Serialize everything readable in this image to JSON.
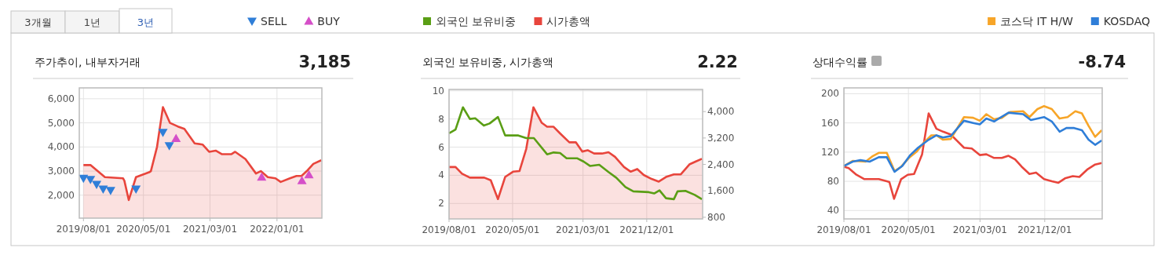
{
  "chart_data": [
    {
      "type": "area",
      "title": "주가추이, 내부자거래",
      "annotations": [
        "3,185",
        "3개월",
        "1년",
        "3년"
      ],
      "legend": "top",
      "grid": true,
      "xlim": [
        "2019-07-13",
        "2022-07-25"
      ],
      "xticks": [
        {
          "value": "2019-08-01",
          "label": "2019/08/01"
        },
        {
          "value": "2020-05-01",
          "label": "2020/05/01"
        },
        {
          "value": "2021-03-01",
          "label": "2021/03/01"
        },
        {
          "value": "2022-01-01",
          "label": "2022/01/01"
        }
      ],
      "ylim": [
        1050,
        6450
      ],
      "yticks": [
        {
          "value": 2000,
          "label": "2,000"
        },
        {
          "value": 3000,
          "label": "3,000"
        },
        {
          "value": 4000,
          "label": "4,000"
        },
        {
          "value": 5000,
          "label": "5,000"
        },
        {
          "value": 6000,
          "label": "6,000"
        }
      ],
      "series": [
        {
          "color": "#e8453c",
          "x": [
            "2019-08-01",
            "2019-09-02",
            "2019-11-07",
            "2020-01-29",
            "2020-02-04",
            "2020-02-24",
            "2020-03-28",
            "2020-05-27",
            "2020-06-04",
            "2020-07-02",
            "2020-07-29",
            "2020-08-30",
            "2020-10-05",
            "2020-11-04",
            "2020-12-21",
            "2021-01-26",
            "2021-02-25",
            "2021-03-27",
            "2021-04-25",
            "2021-06-06",
            "2021-06-24",
            "2021-08-10",
            "2021-09-27",
            "2021-10-19",
            "2021-11-20",
            "2021-12-25",
            "2022-01-18",
            "2022-03-01",
            "2022-03-31",
            "2022-04-23",
            "2022-05-17",
            "2022-06-16",
            "2022-07-22"
          ],
          "values": [
            3250,
            3250,
            2750,
            2700,
            2600,
            1800,
            2750,
            2950,
            3000,
            4000,
            5650,
            5000,
            4850,
            4750,
            4150,
            4100,
            3800,
            3850,
            3700,
            3700,
            3800,
            3500,
            2900,
            3000,
            2750,
            2700,
            2550,
            2700,
            2800,
            2800,
            3000,
            3300,
            3450
          ]
        },
        {
          "name": "SELL",
          "type": "scatter",
          "marker": "triangle-down",
          "color": "#2f7ed8",
          "x": [
            "2019-08-01",
            "2019-09-02",
            "2019-09-30",
            "2019-10-30",
            "2019-12-03",
            "2020-03-28",
            "2020-07-29",
            "2020-08-27"
          ],
          "values": [
            2700,
            2650,
            2450,
            2250,
            2200,
            2250,
            4600,
            4050
          ]
        },
        {
          "name": "BUY",
          "type": "scatter",
          "marker": "triangle",
          "color": "#d54fc8",
          "x": [
            "2020-09-27",
            "2021-10-23",
            "2022-04-25",
            "2022-05-27"
          ],
          "values": [
            4350,
            2750,
            2600,
            2850
          ]
        }
      ]
    },
    {
      "type": "line",
      "title": "외국인 보유비중, 시가총액",
      "annotations": [
        "2.22"
      ],
      "legend": "top",
      "grid": true,
      "xlim": [
        "2019-08-01",
        "2022-07-30"
      ],
      "xticks": [
        {
          "value": "2019-08-01",
          "label": "2019/08/01"
        },
        {
          "value": "2020-05-01",
          "label": "2020/05/01"
        },
        {
          "value": "2021-03-01",
          "label": "2021/03/01"
        },
        {
          "value": "2021-12-01",
          "label": "2021/12/01"
        }
      ],
      "ylim": [
        0.9,
        10.1
      ],
      "yticks": [
        2,
        4,
        6,
        8,
        10
      ],
      "y2lim": [
        750,
        4670
      ],
      "y2ticks": [
        800,
        {
          "value": 1600,
          "label": "1,600"
        },
        {
          "value": 2400,
          "label": "2,400"
        },
        {
          "value": 3200,
          "label": "3,200"
        },
        {
          "value": 4000,
          "label": "4,000"
        }
      ],
      "series": [
        {
          "name": "외국인 보유비중",
          "color": "#5a9e15",
          "x": [
            "2019-08-01",
            "2019-08-29",
            "2019-09-30",
            "2019-10-30",
            "2019-11-22",
            "2019-12-29",
            "2020-01-23",
            "2020-02-28",
            "2020-03-30",
            "2020-05-26",
            "2020-06-29",
            "2020-08-01",
            "2020-09-27",
            "2020-10-25",
            "2020-11-22",
            "2020-12-20",
            "2021-02-03",
            "2021-03-04",
            "2021-04-01",
            "2021-05-10",
            "2021-06-19",
            "2021-07-23",
            "2021-08-31",
            "2021-10-04",
            "2021-12-10",
            "2022-01-02",
            "2022-01-25",
            "2022-02-22",
            "2022-03-28",
            "2022-04-13",
            "2022-05-17",
            "2022-06-26",
            "2022-07-27"
          ],
          "values": [
            6.98,
            7.25,
            8.83,
            8.0,
            8.05,
            7.53,
            7.68,
            8.14,
            6.83,
            6.83,
            6.64,
            6.64,
            5.49,
            5.62,
            5.58,
            5.21,
            5.21,
            4.97,
            4.66,
            4.75,
            4.23,
            3.82,
            3.17,
            2.86,
            2.8,
            2.71,
            2.93,
            2.37,
            2.3,
            2.86,
            2.89,
            2.61,
            2.3
          ]
        },
        {
          "name": "시가총액",
          "type": "area",
          "axis": "y2",
          "color": "#e8453c",
          "x": [
            "2019-08-01",
            "2019-08-29",
            "2019-09-26",
            "2019-10-30",
            "2019-12-31",
            "2020-01-28",
            "2020-02-28",
            "2020-03-30",
            "2020-05-03",
            "2020-05-31",
            "2020-06-29",
            "2020-07-30",
            "2020-09-04",
            "2020-09-27",
            "2020-10-25",
            "2020-11-22",
            "2021-01-01",
            "2021-01-29",
            "2021-02-26",
            "2021-03-21",
            "2021-04-18",
            "2021-05-22",
            "2021-06-19",
            "2021-07-17",
            "2021-08-25",
            "2021-09-23",
            "2021-10-21",
            "2021-11-18",
            "2021-12-22",
            "2022-01-22",
            "2022-02-22",
            "2022-03-28",
            "2022-04-27",
            "2022-06-03",
            "2022-07-01",
            "2022-07-27"
          ],
          "values": [
            2320,
            2320,
            2120,
            2000,
            2000,
            1920,
            1350,
            2020,
            2180,
            2200,
            2870,
            4130,
            3660,
            3540,
            3540,
            3340,
            3070,
            3070,
            2790,
            2830,
            2730,
            2730,
            2770,
            2630,
            2320,
            2180,
            2260,
            2080,
            1960,
            1880,
            2020,
            2100,
            2100,
            2400,
            2490,
            2570
          ]
        }
      ]
    },
    {
      "type": "line",
      "title": "상대수익률",
      "annotations": [
        "-8.74"
      ],
      "legend": "top",
      "grid": true,
      "xlim": [
        "2019-08-01",
        "2022-08-02"
      ],
      "xticks": [
        {
          "value": "2019-08-01",
          "label": "2019/08/01"
        },
        {
          "value": "2020-05-01",
          "label": "2020/05/01"
        },
        {
          "value": "2021-03-01",
          "label": "2021/03/01"
        },
        {
          "value": "2021-12-01",
          "label": "2021/12/01"
        }
      ],
      "ylim": [
        28.5,
        208
      ],
      "yticks": [
        40,
        80,
        120,
        160,
        200
      ],
      "series": [
        {
          "color": "#e8453c",
          "x": [
            "2019-08-01",
            "2019-08-21",
            "2019-09-23",
            "2019-10-27",
            "2019-12-27",
            "2020-01-30",
            "2020-02-10",
            "2020-03-01",
            "2020-03-31",
            "2020-04-28",
            "2020-05-25",
            "2020-06-28",
            "2020-07-26",
            "2020-08-28",
            "2020-09-25",
            "2020-10-28",
            "2020-11-25",
            "2020-12-23",
            "2021-01-25",
            "2021-02-28",
            "2021-03-28",
            "2021-04-30",
            "2021-06-02",
            "2021-06-30",
            "2021-07-28",
            "2021-08-25",
            "2021-09-27",
            "2021-10-25",
            "2021-11-28",
            "2021-12-31",
            "2022-01-28",
            "2022-02-25",
            "2022-03-30",
            "2022-04-27",
            "2022-05-30",
            "2022-07-03",
            "2022-07-31"
          ],
          "values": [
            100,
            98,
            89,
            83,
            83,
            80,
            79,
            56,
            83,
            89,
            90,
            117,
            173,
            152,
            148,
            144,
            135,
            126,
            125,
            116,
            117,
            112,
            112,
            115,
            110,
            100,
            90,
            92,
            83,
            80,
            78,
            84,
            87,
            86,
            96,
            103,
            105
          ]
        },
        {
          "name": "코스닥 IT H/W",
          "color": "#f7a528",
          "x": [
            "2019-08-01",
            "2019-09-07",
            "2019-11-01",
            "2019-11-29",
            "2019-12-27",
            "2020-01-30",
            "2020-03-03",
            "2020-03-31",
            "2020-05-03",
            "2020-06-06",
            "2020-07-03",
            "2020-08-06",
            "2020-08-28",
            "2020-09-25",
            "2020-10-28",
            "2020-12-23",
            "2021-01-31",
            "2021-02-28",
            "2021-03-28",
            "2021-04-30",
            "2021-06-02",
            "2021-07-06",
            "2021-08-31",
            "2021-09-27",
            "2021-10-31",
            "2021-11-28",
            "2021-12-31",
            "2022-02-02",
            "2022-03-08",
            "2022-04-10",
            "2022-05-08",
            "2022-06-05",
            "2022-07-03",
            "2022-07-31"
          ],
          "values": [
            101,
            108,
            107,
            114,
            119,
            119,
            94,
            100,
            112,
            121,
            132,
            143,
            143,
            137,
            138,
            168,
            167,
            163,
            172,
            165,
            167,
            175,
            176,
            168,
            179,
            183,
            179,
            166,
            168,
            176,
            173,
            156,
            141,
            150
          ]
        },
        {
          "name": "KOSDAQ",
          "color": "#2f7ed8",
          "x": [
            "2019-08-01",
            "2019-09-07",
            "2019-10-10",
            "2019-11-18",
            "2019-12-27",
            "2020-01-30",
            "2020-03-03",
            "2020-04-05",
            "2020-05-09",
            "2020-06-11",
            "2020-07-26",
            "2020-08-28",
            "2020-09-25",
            "2020-10-28",
            "2020-12-23",
            "2021-01-31",
            "2021-02-28",
            "2021-03-28",
            "2021-04-30",
            "2021-06-30",
            "2021-08-31",
            "2021-10-03",
            "2021-11-28",
            "2021-12-31",
            "2022-02-02",
            "2022-03-03",
            "2022-04-05",
            "2022-05-08",
            "2022-06-05",
            "2022-07-03",
            "2022-07-31"
          ],
          "values": [
            101,
            107,
            109,
            107,
            113,
            113,
            93,
            101,
            116,
            126,
            137,
            143,
            140,
            142,
            163,
            160,
            158,
            166,
            162,
            174,
            172,
            164,
            168,
            162,
            148,
            153,
            153,
            150,
            137,
            130,
            136
          ]
        }
      ]
    }
  ]
}
